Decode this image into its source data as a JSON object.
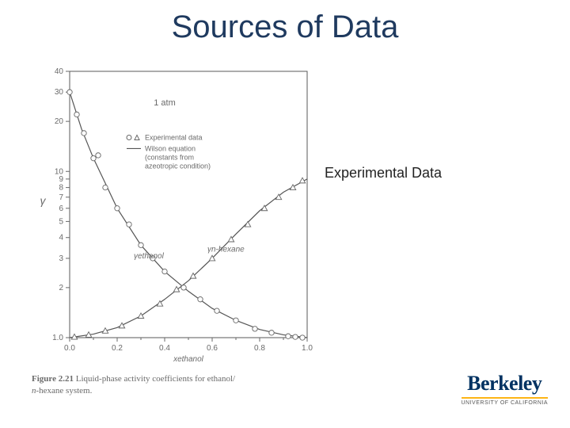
{
  "title": "Sources of Data",
  "side_label": "Experimental Data",
  "logo": {
    "main": "Berkeley",
    "sub": "UNIVERSITY OF CALIFORNIA"
  },
  "caption": {
    "fignum": "Figure 2.21",
    "text": "Liquid-phase activity coefficients for ethanol/",
    "text2": "n-hexane system.",
    "italic": "n"
  },
  "chart": {
    "type": "scatter+line",
    "background_color": "#ffffff",
    "axis_color": "#5a5a5a",
    "tick_color": "#6a6a6a",
    "text_color": "#6a6a6a",
    "tick_fontsize": 10,
    "label_fontsize": 10,
    "xlabel": "xethanol",
    "ylabel": "γ",
    "xlim": [
      0.0,
      1.0
    ],
    "xtick_step": 0.2,
    "xticks": [
      "0.0",
      "0.2",
      "0.4",
      "0.6",
      "0.8",
      "1.0"
    ],
    "yscale": "log",
    "ylim": [
      1,
      40
    ],
    "yticks": [
      1.0,
      2,
      3,
      4,
      5,
      6,
      7,
      8,
      9,
      10,
      20,
      30,
      40
    ],
    "ytick_labels": [
      "1.0",
      "2",
      "3",
      "4",
      "5",
      "6",
      "7",
      "8",
      "9",
      "10",
      "20",
      "30",
      "40"
    ],
    "condition_label": "1 atm",
    "legend": {
      "marker_label": "Experimental data",
      "line_label1": "Wilson equation",
      "line_label2": "(constants from",
      "line_label3": "azeotropic condition)"
    },
    "curve_labels": {
      "left": "γethanol",
      "right": "γn-hexane"
    },
    "line_color": "#555555",
    "line_width": 1.2,
    "marker_stroke": "#666666",
    "marker_fill": "#ffffff",
    "marker_size": 3.2,
    "curve_ethanol": [
      {
        "x": 0.0,
        "y": 30.0
      },
      {
        "x": 0.05,
        "y": 18.0
      },
      {
        "x": 0.1,
        "y": 12.0
      },
      {
        "x": 0.15,
        "y": 8.5
      },
      {
        "x": 0.2,
        "y": 6.0
      },
      {
        "x": 0.3,
        "y": 3.6
      },
      {
        "x": 0.4,
        "y": 2.5
      },
      {
        "x": 0.5,
        "y": 1.9
      },
      {
        "x": 0.6,
        "y": 1.5
      },
      {
        "x": 0.7,
        "y": 1.27
      },
      {
        "x": 0.8,
        "y": 1.12
      },
      {
        "x": 0.9,
        "y": 1.04
      },
      {
        "x": 1.0,
        "y": 1.0
      }
    ],
    "curve_hexane": [
      {
        "x": 0.0,
        "y": 1.0
      },
      {
        "x": 0.1,
        "y": 1.05
      },
      {
        "x": 0.2,
        "y": 1.15
      },
      {
        "x": 0.3,
        "y": 1.35
      },
      {
        "x": 0.4,
        "y": 1.7
      },
      {
        "x": 0.5,
        "y": 2.2
      },
      {
        "x": 0.6,
        "y": 3.0
      },
      {
        "x": 0.7,
        "y": 4.2
      },
      {
        "x": 0.8,
        "y": 5.8
      },
      {
        "x": 0.9,
        "y": 7.5
      },
      {
        "x": 1.0,
        "y": 9.0
      }
    ],
    "points_ethanol_circles": [
      {
        "x": 0.0,
        "y": 30.0
      },
      {
        "x": 0.03,
        "y": 22.0
      },
      {
        "x": 0.06,
        "y": 17.0
      },
      {
        "x": 0.1,
        "y": 12.0
      },
      {
        "x": 0.12,
        "y": 12.5
      },
      {
        "x": 0.15,
        "y": 8.0
      },
      {
        "x": 0.2,
        "y": 6.0
      },
      {
        "x": 0.25,
        "y": 4.8
      },
      {
        "x": 0.3,
        "y": 3.6
      },
      {
        "x": 0.35,
        "y": 3.0
      },
      {
        "x": 0.4,
        "y": 2.5
      },
      {
        "x": 0.48,
        "y": 2.0
      },
      {
        "x": 0.55,
        "y": 1.7
      },
      {
        "x": 0.62,
        "y": 1.45
      },
      {
        "x": 0.7,
        "y": 1.27
      },
      {
        "x": 0.78,
        "y": 1.13
      },
      {
        "x": 0.85,
        "y": 1.07
      },
      {
        "x": 0.92,
        "y": 1.02
      },
      {
        "x": 0.95,
        "y": 1.01
      },
      {
        "x": 0.98,
        "y": 1.0
      }
    ],
    "points_hexane_triangles": [
      {
        "x": 0.02,
        "y": 1.01
      },
      {
        "x": 0.08,
        "y": 1.04
      },
      {
        "x": 0.15,
        "y": 1.1
      },
      {
        "x": 0.22,
        "y": 1.18
      },
      {
        "x": 0.3,
        "y": 1.35
      },
      {
        "x": 0.38,
        "y": 1.6
      },
      {
        "x": 0.45,
        "y": 1.95
      },
      {
        "x": 0.52,
        "y": 2.35
      },
      {
        "x": 0.6,
        "y": 3.0
      },
      {
        "x": 0.68,
        "y": 3.9
      },
      {
        "x": 0.75,
        "y": 4.8
      },
      {
        "x": 0.82,
        "y": 6.0
      },
      {
        "x": 0.88,
        "y": 7.0
      },
      {
        "x": 0.94,
        "y": 8.0
      },
      {
        "x": 0.98,
        "y": 8.8
      }
    ]
  }
}
